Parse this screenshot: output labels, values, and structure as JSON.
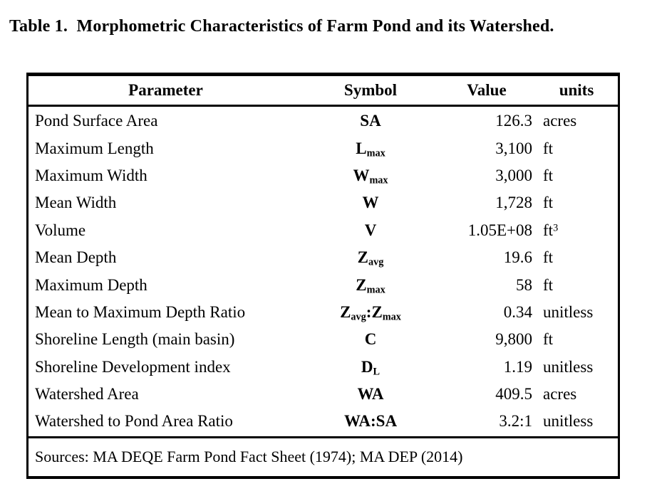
{
  "caption": "Table 1.  Morphometric Characteristics of Farm Pond and its Watershed.",
  "colors": {
    "text": "#000000",
    "border": "#000000",
    "background": "#ffffff"
  },
  "table": {
    "headers": {
      "parameter": "Parameter",
      "symbol": "Symbol",
      "value": "Value",
      "units": "units"
    },
    "rows": [
      {
        "parameter": "Pond Surface Area",
        "symbol": [
          {
            "t": "SA"
          }
        ],
        "value": "126.3",
        "units": [
          {
            "t": "acres"
          }
        ]
      },
      {
        "parameter": "Maximum Length",
        "symbol": [
          {
            "t": "L"
          },
          {
            "t": "max",
            "m": "sub"
          }
        ],
        "value": "3,100",
        "units": [
          {
            "t": "ft"
          }
        ]
      },
      {
        "parameter": "Maximum Width",
        "symbol": [
          {
            "t": "W"
          },
          {
            "t": "max",
            "m": "sub"
          }
        ],
        "value": "3,000",
        "units": [
          {
            "t": "ft"
          }
        ]
      },
      {
        "parameter": "Mean Width",
        "symbol": [
          {
            "t": "W"
          }
        ],
        "value": "1,728",
        "units": [
          {
            "t": "ft"
          }
        ]
      },
      {
        "parameter": "Volume",
        "symbol": [
          {
            "t": "V"
          }
        ],
        "value": "1.05E+08",
        "units": [
          {
            "t": "ft"
          },
          {
            "t": "3",
            "m": "sup"
          }
        ]
      },
      {
        "parameter": "Mean Depth",
        "symbol": [
          {
            "t": "Z"
          },
          {
            "t": "avg",
            "m": "sub"
          }
        ],
        "value": "19.6",
        "units": [
          {
            "t": "ft"
          }
        ]
      },
      {
        "parameter": "Maximum Depth",
        "symbol": [
          {
            "t": "Z"
          },
          {
            "t": "max",
            "m": "sub"
          }
        ],
        "value": "58",
        "units": [
          {
            "t": "ft"
          }
        ]
      },
      {
        "parameter": "Mean to Maximum Depth Ratio",
        "symbol": [
          {
            "t": "Z"
          },
          {
            "t": "avg",
            "m": "sub"
          },
          {
            "t": ":Z"
          },
          {
            "t": "max",
            "m": "sub"
          }
        ],
        "value": "0.34",
        "units": [
          {
            "t": "unitless"
          }
        ]
      },
      {
        "parameter": "Shoreline Length (main basin)",
        "symbol": [
          {
            "t": "C"
          }
        ],
        "value": "9,800",
        "units": [
          {
            "t": "ft"
          }
        ]
      },
      {
        "parameter": "Shoreline Development index",
        "symbol": [
          {
            "t": "D"
          },
          {
            "t": "L",
            "m": "sub"
          }
        ],
        "value": "1.19",
        "units": [
          {
            "t": "unitless"
          }
        ]
      },
      {
        "parameter": "Watershed Area",
        "symbol": [
          {
            "t": "WA"
          }
        ],
        "value": "409.5",
        "units": [
          {
            "t": "acres"
          }
        ]
      },
      {
        "parameter": "Watershed to Pond Area Ratio",
        "symbol": [
          {
            "t": "WA:SA"
          }
        ],
        "value": "3.2:1",
        "units": [
          {
            "t": "unitless"
          }
        ]
      }
    ],
    "sources": "Sources: MA DEQE Farm Pond Fact Sheet (1974); MA DEP (2014)"
  }
}
